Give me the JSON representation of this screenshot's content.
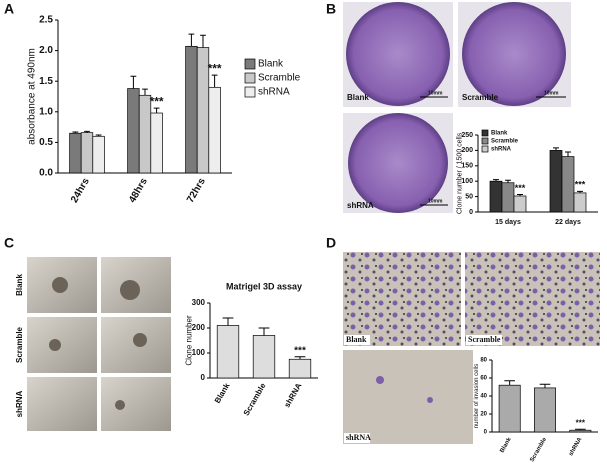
{
  "figure": {
    "panel_labels": [
      "A",
      "B",
      "C",
      "D"
    ],
    "b_images": [
      {
        "label": "Blank",
        "scale": "10mm"
      },
      {
        "label": "Scramble",
        "scale": "10mm"
      },
      {
        "label": "shRNA",
        "scale": "10mm"
      }
    ],
    "c_rows": [
      "Blank",
      "Scramble",
      "shRNA"
    ],
    "d_images": [
      "Blank",
      "Scramble",
      "shRNA"
    ]
  },
  "chart_data": [
    {
      "type": "bar",
      "ylabel": "absorbance at 490nm",
      "categories": [
        "24hrs",
        "48hrs",
        "72hrs"
      ],
      "series": [
        {
          "name": "Blank",
          "color": "#7a7a7a",
          "values": [
            0.65,
            1.38,
            2.07
          ],
          "errors": [
            0.02,
            0.2,
            0.2
          ]
        },
        {
          "name": "Scramble",
          "color": "#c8c8c8",
          "values": [
            0.66,
            1.27,
            2.05
          ],
          "errors": [
            0.02,
            0.1,
            0.2
          ]
        },
        {
          "name": "shRNA",
          "color": "#eeeeee",
          "values": [
            0.6,
            0.98,
            1.4
          ],
          "errors": [
            0.02,
            0.08,
            0.2
          ]
        }
      ],
      "annotations": [
        "***",
        "***"
      ],
      "ylim": [
        0,
        2.5
      ],
      "yticks": [
        {
          "value": 0,
          "label": "0.0"
        },
        0.5,
        {
          "value": 1,
          "label": "1.0"
        },
        1.5,
        {
          "value": 2,
          "label": "2.0"
        },
        2.5
      ]
    },
    {
      "type": "bar",
      "ylabel": "Clone number / 1500 cells",
      "categories": [
        "15 days",
        "22 days"
      ],
      "series": [
        {
          "name": "Blank",
          "color": "#333333",
          "values": [
            100,
            200
          ],
          "errors": [
            5,
            8
          ]
        },
        {
          "name": "Scramble",
          "color": "#888888",
          "values": [
            95,
            180
          ],
          "errors": [
            8,
            15
          ]
        },
        {
          "name": "shRNA",
          "color": "#cccccc",
          "values": [
            52,
            62
          ],
          "errors": [
            5,
            5
          ]
        }
      ],
      "annotations": [
        "***",
        "***"
      ],
      "ylim": [
        0,
        250
      ],
      "yticks": [
        0,
        50,
        100,
        150,
        200,
        250
      ]
    },
    {
      "type": "bar",
      "title": "Matrigel 3D assay",
      "ylabel": "Clone number",
      "categories": [
        "Blank",
        "Scramble",
        "shRNA"
      ],
      "values": [
        210,
        170,
        75
      ],
      "errors": [
        30,
        30,
        10
      ],
      "color": "#dddddd",
      "annotations": [
        "***"
      ],
      "ylim": [
        0,
        300
      ],
      "yticks": [
        0,
        100,
        200,
        300
      ]
    },
    {
      "type": "bar",
      "ylabel": "number of invasion cells",
      "categories": [
        "Blank",
        "Scramble",
        "shRNA"
      ],
      "values": [
        52,
        49,
        2
      ],
      "errors": [
        5,
        4,
        1
      ],
      "color": "#aaaaaa",
      "annotations": [
        "***"
      ],
      "ylim": [
        0,
        80
      ],
      "yticks": [
        0,
        20,
        40,
        60,
        80
      ]
    }
  ]
}
